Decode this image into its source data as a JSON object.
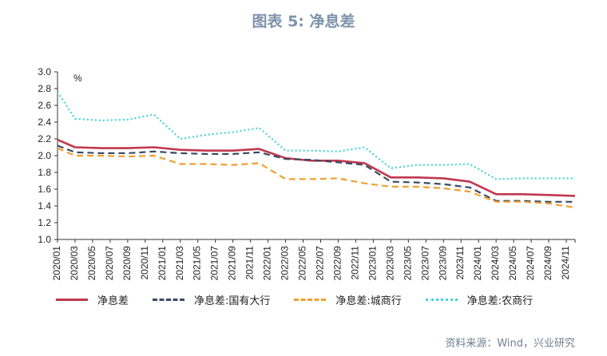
{
  "title": "图表 5: 净息差",
  "source": "资料来源：Wind，兴业研究",
  "chart_data": {
    "type": "line",
    "title": "图表 5: 净息差",
    "ylabel": "%",
    "xlabel": "",
    "ylim": [
      1.0,
      3.0
    ],
    "yticks": [
      1.0,
      1.2,
      1.4,
      1.6,
      1.8,
      2.0,
      2.2,
      2.4,
      2.6,
      2.8,
      3.0
    ],
    "grid": false,
    "legend_position": "bottom",
    "x": [
      "2020/01",
      "2020/03",
      "2020/05",
      "2020/07",
      "2020/09",
      "2020/11",
      "2021/01",
      "2021/03",
      "2021/05",
      "2021/07",
      "2021/09",
      "2021/11",
      "2022/01",
      "2022/03",
      "2022/05",
      "2022/07",
      "2022/09",
      "2022/11",
      "2023/01",
      "2023/03",
      "2023/05",
      "2023/07",
      "2023/09",
      "2023/11",
      "2024/01",
      "2024/03",
      "2024/05",
      "2024/07",
      "2024/09",
      "2024/11"
    ],
    "x_labeled": [
      "2020/01",
      "2020/03",
      "2020/05",
      "2020/07",
      "2020/09",
      "2020/11",
      "2021/01",
      "2021/03",
      "2021/05",
      "2021/07",
      "2021/09",
      "2021/11",
      "2022/01",
      "2022/03",
      "2022/05",
      "2022/07",
      "2022/09",
      "2022/11",
      "2023/01",
      "2023/03",
      "2023/05",
      "2023/07",
      "2023/09",
      "2023/11",
      "2024/01",
      "2024/03",
      "2024/05",
      "2024/07",
      "2024/09",
      "2024/11"
    ],
    "series": [
      {
        "name": "净息差",
        "color": "#c0384e",
        "style": "solid",
        "points": [
          [
            "2020/01",
            2.19
          ],
          [
            "2020/03",
            2.1
          ],
          [
            "2020/06",
            2.09
          ],
          [
            "2020/09",
            2.09
          ],
          [
            "2020/12",
            2.1
          ],
          [
            "2021/03",
            2.07
          ],
          [
            "2021/06",
            2.06
          ],
          [
            "2021/09",
            2.06
          ],
          [
            "2021/12",
            2.08
          ],
          [
            "2022/03",
            1.97
          ],
          [
            "2022/06",
            1.94
          ],
          [
            "2022/09",
            1.94
          ],
          [
            "2022/12",
            1.91
          ],
          [
            "2023/03",
            1.74
          ],
          [
            "2023/06",
            1.74
          ],
          [
            "2023/09",
            1.73
          ],
          [
            "2023/12",
            1.69
          ],
          [
            "2024/03",
            1.54
          ],
          [
            "2024/06",
            1.54
          ],
          [
            "2024/09",
            1.53
          ],
          [
            "2024/12",
            1.52
          ]
        ]
      },
      {
        "name": "净息差:国有大行",
        "color": "#3a4a66",
        "style": "dashed",
        "points": [
          [
            "2020/01",
            2.12
          ],
          [
            "2020/03",
            2.04
          ],
          [
            "2020/06",
            2.03
          ],
          [
            "2020/09",
            2.03
          ],
          [
            "2020/12",
            2.05
          ],
          [
            "2021/03",
            2.03
          ],
          [
            "2021/06",
            2.02
          ],
          [
            "2021/09",
            2.02
          ],
          [
            "2021/12",
            2.04
          ],
          [
            "2022/03",
            1.96
          ],
          [
            "2022/06",
            1.95
          ],
          [
            "2022/09",
            1.92
          ],
          [
            "2022/12",
            1.89
          ],
          [
            "2023/03",
            1.69
          ],
          [
            "2023/06",
            1.68
          ],
          [
            "2023/09",
            1.66
          ],
          [
            "2023/12",
            1.62
          ],
          [
            "2024/03",
            1.46
          ],
          [
            "2024/06",
            1.46
          ],
          [
            "2024/09",
            1.45
          ],
          [
            "2024/12",
            1.45
          ]
        ]
      },
      {
        "name": "净息差:城商行",
        "color": "#f0a030",
        "style": "dashed",
        "points": [
          [
            "2020/01",
            2.09
          ],
          [
            "2020/03",
            2.0
          ],
          [
            "2020/06",
            2.0
          ],
          [
            "2020/09",
            1.99
          ],
          [
            "2020/12",
            2.0
          ],
          [
            "2021/03",
            1.9
          ],
          [
            "2021/06",
            1.9
          ],
          [
            "2021/09",
            1.89
          ],
          [
            "2021/12",
            1.91
          ],
          [
            "2022/03",
            1.72
          ],
          [
            "2022/06",
            1.72
          ],
          [
            "2022/09",
            1.73
          ],
          [
            "2022/12",
            1.67
          ],
          [
            "2023/03",
            1.63
          ],
          [
            "2023/06",
            1.63
          ],
          [
            "2023/09",
            1.61
          ],
          [
            "2023/12",
            1.57
          ],
          [
            "2024/03",
            1.45
          ],
          [
            "2024/06",
            1.45
          ],
          [
            "2024/09",
            1.43
          ],
          [
            "2024/12",
            1.38
          ]
        ]
      },
      {
        "name": "净息差:农商行",
        "color": "#44d4d8",
        "style": "dotted",
        "points": [
          [
            "2020/01",
            2.76
          ],
          [
            "2020/03",
            2.44
          ],
          [
            "2020/06",
            2.42
          ],
          [
            "2020/09",
            2.43
          ],
          [
            "2020/12",
            2.49
          ],
          [
            "2021/03",
            2.2
          ],
          [
            "2021/06",
            2.25
          ],
          [
            "2021/09",
            2.28
          ],
          [
            "2021/12",
            2.33
          ],
          [
            "2022/03",
            2.06
          ],
          [
            "2022/06",
            2.06
          ],
          [
            "2022/09",
            2.05
          ],
          [
            "2022/12",
            2.1
          ],
          [
            "2023/03",
            1.85
          ],
          [
            "2023/06",
            1.89
          ],
          [
            "2023/09",
            1.89
          ],
          [
            "2023/12",
            1.9
          ],
          [
            "2024/03",
            1.72
          ],
          [
            "2024/06",
            1.73
          ],
          [
            "2024/09",
            1.73
          ],
          [
            "2024/12",
            1.73
          ]
        ]
      }
    ]
  }
}
